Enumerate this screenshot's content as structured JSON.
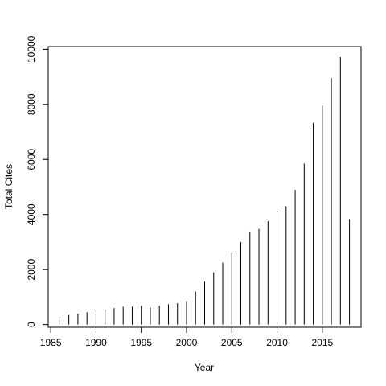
{
  "chart_data": {
    "type": "spike",
    "xlabel": "Year",
    "ylabel": "Total Cites",
    "color": "#000000",
    "x": [
      1986,
      1987,
      1988,
      1989,
      1990,
      1991,
      1992,
      1993,
      1994,
      1995,
      1996,
      1997,
      1998,
      1999,
      2000,
      2001,
      2002,
      2003,
      2004,
      2005,
      2006,
      2007,
      2008,
      2009,
      2010,
      2011,
      2012,
      2013,
      2014,
      2015,
      2016,
      2017,
      2018
    ],
    "values": [
      280,
      350,
      400,
      450,
      520,
      560,
      600,
      650,
      650,
      680,
      620,
      680,
      740,
      780,
      850,
      1200,
      1560,
      1900,
      2250,
      2620,
      3000,
      3380,
      3480,
      3760,
      4100,
      4300,
      4900,
      5850,
      7330,
      7950,
      8950,
      9720,
      3830
    ],
    "xlim": [
      1984.72,
      2019.28
    ],
    "ylim": [
      -98,
      10098
    ],
    "xticks": [
      1985,
      1990,
      1995,
      2000,
      2005,
      2010,
      2015
    ],
    "yticks": [
      0,
      2000,
      4000,
      6000,
      8000,
      10000
    ]
  }
}
